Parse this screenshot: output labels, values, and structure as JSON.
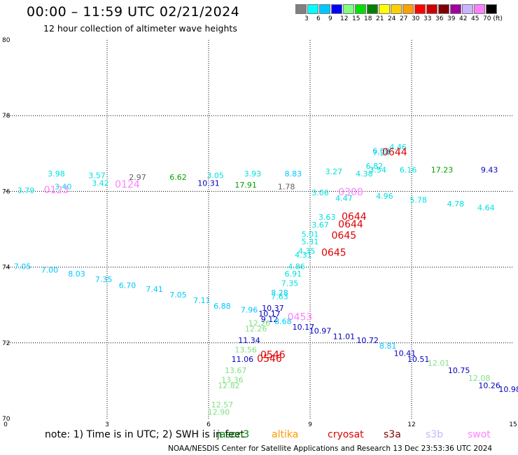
{
  "header": {
    "title": "00:00 – 11:59 UTC 02/21/2024",
    "subtitle": "12 hour collection of altimeter wave heights"
  },
  "colorbar": {
    "colors": [
      "#808080",
      "#00ffff",
      "#00c8ff",
      "#0000ff",
      "#80ff80",
      "#00e000",
      "#008000",
      "#ffff00",
      "#ffd000",
      "#ffa000",
      "#ff0000",
      "#d00000",
      "#800000",
      "#a000a0",
      "#c8b4ff",
      "#ff80ff",
      "#000000"
    ],
    "labels": [
      "3",
      "6",
      "9",
      "12",
      "15",
      "18",
      "21",
      "24",
      "27",
      "30",
      "33",
      "36",
      "39",
      "42",
      "45",
      "70 (ft)"
    ]
  },
  "axes": {
    "y_ticks": [
      {
        "label": "80",
        "value": 80
      },
      {
        "label": "78",
        "value": 78
      },
      {
        "label": "76",
        "value": 76
      },
      {
        "label": "74",
        "value": 74
      },
      {
        "label": "72",
        "value": 72
      },
      {
        "label": "70",
        "value": 70
      }
    ],
    "x_ticks": [
      {
        "label": "0",
        "value": 0
      },
      {
        "label": "3",
        "value": 3
      },
      {
        "label": "6",
        "value": 6
      },
      {
        "label": "9",
        "value": 9
      },
      {
        "label": "12",
        "value": 12
      },
      {
        "label": "15",
        "value": 15
      }
    ],
    "xlim": [
      0,
      15
    ],
    "ylim": [
      70,
      80
    ]
  },
  "observations": [
    {
      "text": "4.46",
      "lon": 11.6,
      "lat": 77.1,
      "color": "#00e0e0"
    },
    {
      "text": "6.09",
      "lon": 11.1,
      "lat": 77.0,
      "color": "#00c8ff"
    },
    {
      "text": "7.24",
      "lon": 11.1,
      "lat": 76.95,
      "color": "#00e0e0"
    },
    {
      "text": "0644",
      "lon": 11.5,
      "lat": 76.95,
      "color": "#e00000",
      "big": true
    },
    {
      "text": "6.82",
      "lon": 10.9,
      "lat": 76.6,
      "color": "#00e0e0"
    },
    {
      "text": "6.16",
      "lon": 11.9,
      "lat": 76.5,
      "color": "#00e0e0"
    },
    {
      "text": "17.23",
      "lon": 12.9,
      "lat": 76.5,
      "color": "#00a000"
    },
    {
      "text": "9.43",
      "lon": 14.3,
      "lat": 76.5,
      "color": "#0000c0"
    },
    {
      "text": "3.98",
      "lon": 1.5,
      "lat": 76.4,
      "color": "#00e0e0"
    },
    {
      "text": "3.57",
      "lon": 2.7,
      "lat": 76.35,
      "color": "#00e0e0"
    },
    {
      "text": "2.97",
      "lon": 3.9,
      "lat": 76.3,
      "color": "#606060"
    },
    {
      "text": "6.62",
      "lon": 5.1,
      "lat": 76.3,
      "color": "#00a000"
    },
    {
      "text": "3.05",
      "lon": 6.2,
      "lat": 76.35,
      "color": "#00e0e0"
    },
    {
      "text": "3.93",
      "lon": 7.3,
      "lat": 76.4,
      "color": "#00e0e0"
    },
    {
      "text": "8.83",
      "lon": 8.5,
      "lat": 76.4,
      "color": "#00c8ff"
    },
    {
      "text": "3.27",
      "lon": 9.7,
      "lat": 76.45,
      "color": "#00e0e0"
    },
    {
      "text": "4.38",
      "lon": 10.6,
      "lat": 76.4,
      "color": "#00e0e0"
    },
    {
      "text": "3.54",
      "lon": 11.0,
      "lat": 76.5,
      "color": "#00e0e0"
    },
    {
      "text": "3.40",
      "lon": 1.7,
      "lat": 76.05,
      "color": "#00e0e0"
    },
    {
      "text": "3.42",
      "lon": 2.8,
      "lat": 76.15,
      "color": "#00e0e0"
    },
    {
      "text": "0124",
      "lon": 3.6,
      "lat": 76.1,
      "color": "#ff80ff",
      "big": true
    },
    {
      "text": "10.31",
      "lon": 6.0,
      "lat": 76.15,
      "color": "#0000c0"
    },
    {
      "text": "17.91",
      "lon": 7.1,
      "lat": 76.1,
      "color": "#00a000"
    },
    {
      "text": "1.78",
      "lon": 8.3,
      "lat": 76.05,
      "color": "#606060"
    },
    {
      "text": "3.79",
      "lon": 0.6,
      "lat": 75.95,
      "color": "#00e0e0"
    },
    {
      "text": "0123",
      "lon": 1.5,
      "lat": 75.95,
      "color": "#ff80ff",
      "big": true
    },
    {
      "text": "3.06",
      "lon": 9.3,
      "lat": 75.9,
      "color": "#00e0e0"
    },
    {
      "text": "0308",
      "lon": 10.2,
      "lat": 75.9,
      "color": "#ff80ff",
      "big": true
    },
    {
      "text": "4.47",
      "lon": 10.0,
      "lat": 75.75,
      "color": "#00e0e0"
    },
    {
      "text": "4.96",
      "lon": 11.2,
      "lat": 75.8,
      "color": "#00e0e0"
    },
    {
      "text": "5.78",
      "lon": 12.2,
      "lat": 75.7,
      "color": "#00e0e0"
    },
    {
      "text": "4.78",
      "lon": 13.3,
      "lat": 75.6,
      "color": "#00e0e0"
    },
    {
      "text": "4.64",
      "lon": 14.2,
      "lat": 75.5,
      "color": "#00e0e0"
    },
    {
      "text": "3.63",
      "lon": 9.5,
      "lat": 75.25,
      "color": "#00e0e0"
    },
    {
      "text": "0644",
      "lon": 10.3,
      "lat": 75.25,
      "color": "#e00000",
      "big": true
    },
    {
      "text": "3.67",
      "lon": 9.3,
      "lat": 75.05,
      "color": "#00e0e0"
    },
    {
      "text": "0644",
      "lon": 10.2,
      "lat": 75.05,
      "color": "#e00000",
      "big": true
    },
    {
      "text": "5.01",
      "lon": 9.0,
      "lat": 74.8,
      "color": "#00e0e0"
    },
    {
      "text": "0645",
      "lon": 10.0,
      "lat": 74.75,
      "color": "#e00000",
      "big": true
    },
    {
      "text": "5.31",
      "lon": 9.0,
      "lat": 74.6,
      "color": "#00e0e0"
    },
    {
      "text": "4.35",
      "lon": 8.9,
      "lat": 74.35,
      "color": "#00e0e0"
    },
    {
      "text": "0645",
      "lon": 9.7,
      "lat": 74.3,
      "color": "#e00000",
      "big": true
    },
    {
      "text": "4.31",
      "lon": 8.8,
      "lat": 74.25,
      "color": "#00e0e0"
    },
    {
      "text": "7.05",
      "lon": 0.5,
      "lat": 73.95,
      "color": "#00c8ff"
    },
    {
      "text": "7.00",
      "lon": 1.3,
      "lat": 73.85,
      "color": "#00c8ff"
    },
    {
      "text": "4.86",
      "lon": 8.6,
      "lat": 73.95,
      "color": "#00e0e0"
    },
    {
      "text": "8.03",
      "lon": 2.1,
      "lat": 73.75,
      "color": "#00c8ff"
    },
    {
      "text": "6.91",
      "lon": 8.5,
      "lat": 73.75,
      "color": "#00e0e0"
    },
    {
      "text": "7.35",
      "lon": 2.9,
      "lat": 73.6,
      "color": "#00c8ff"
    },
    {
      "text": "6.70",
      "lon": 3.6,
      "lat": 73.45,
      "color": "#00c8ff"
    },
    {
      "text": "7.35",
      "lon": 8.4,
      "lat": 73.5,
      "color": "#00e0e0"
    },
    {
      "text": "7.41",
      "lon": 4.4,
      "lat": 73.35,
      "color": "#00c8ff"
    },
    {
      "text": "7.05",
      "lon": 5.1,
      "lat": 73.2,
      "color": "#00c8ff"
    },
    {
      "text": "7.11",
      "lon": 5.8,
      "lat": 73.05,
      "color": "#00c8ff"
    },
    {
      "text": "8.28",
      "lon": 8.1,
      "lat": 73.25,
      "color": "#00c8ff"
    },
    {
      "text": "7.63",
      "lon": 8.1,
      "lat": 73.15,
      "color": "#00e0e0"
    },
    {
      "text": "6.88",
      "lon": 6.4,
      "lat": 72.9,
      "color": "#00c8ff"
    },
    {
      "text": "10.37",
      "lon": 7.9,
      "lat": 72.85,
      "color": "#0000c0"
    },
    {
      "text": "7.96",
      "lon": 7.2,
      "lat": 72.8,
      "color": "#00c8ff"
    },
    {
      "text": "10.17",
      "lon": 7.8,
      "lat": 72.7,
      "color": "#0000c0"
    },
    {
      "text": "9.12",
      "lon": 7.8,
      "lat": 72.55,
      "color": "#0000c0"
    },
    {
      "text": "0453",
      "lon": 8.7,
      "lat": 72.6,
      "color": "#ff80ff",
      "big": true
    },
    {
      "text": "8.68",
      "lon": 8.2,
      "lat": 72.5,
      "color": "#00c8ff"
    },
    {
      "text": "12.26",
      "lon": 7.5,
      "lat": 72.45,
      "color": "#80e080"
    },
    {
      "text": "10.17",
      "lon": 8.8,
      "lat": 72.35,
      "color": "#0000c0"
    },
    {
      "text": "12.26",
      "lon": 7.4,
      "lat": 72.3,
      "color": "#80e080"
    },
    {
      "text": "10.97",
      "lon": 9.3,
      "lat": 72.25,
      "color": "#0000c0"
    },
    {
      "text": "11.01",
      "lon": 10.0,
      "lat": 72.1,
      "color": "#0000c0"
    },
    {
      "text": "10.72",
      "lon": 10.7,
      "lat": 72.0,
      "color": "#0000c0"
    },
    {
      "text": "11.34",
      "lon": 7.2,
      "lat": 72.0,
      "color": "#0000c0"
    },
    {
      "text": "8.81",
      "lon": 11.3,
      "lat": 71.85,
      "color": "#00c8ff"
    },
    {
      "text": "13.56",
      "lon": 7.1,
      "lat": 71.75,
      "color": "#80e080"
    },
    {
      "text": "10.41",
      "lon": 11.8,
      "lat": 71.65,
      "color": "#0000c0"
    },
    {
      "text": "0546",
      "lon": 7.9,
      "lat": 71.6,
      "color": "#e00000",
      "big": true
    },
    {
      "text": "11.06",
      "lon": 7.0,
      "lat": 71.5,
      "color": "#0000c0"
    },
    {
      "text": "0546",
      "lon": 7.8,
      "lat": 71.5,
      "color": "#e00000",
      "big": true
    },
    {
      "text": "10.51",
      "lon": 12.2,
      "lat": 71.5,
      "color": "#0000c0"
    },
    {
      "text": "12.01",
      "lon": 12.8,
      "lat": 71.4,
      "color": "#80e080"
    },
    {
      "text": "13.67",
      "lon": 6.8,
      "lat": 71.2,
      "color": "#80e080"
    },
    {
      "text": "10.75",
      "lon": 13.4,
      "lat": 71.2,
      "color": "#0000c0"
    },
    {
      "text": "12.08",
      "lon": 14.0,
      "lat": 71.0,
      "color": "#80e080"
    },
    {
      "text": "13.36",
      "lon": 6.7,
      "lat": 70.95,
      "color": "#80e080"
    },
    {
      "text": "10.26",
      "lon": 14.3,
      "lat": 70.8,
      "color": "#0000c0"
    },
    {
      "text": "12.82",
      "lon": 6.6,
      "lat": 70.8,
      "color": "#80e080"
    },
    {
      "text": "10.98",
      "lon": 14.9,
      "lat": 70.7,
      "color": "#0000c0"
    },
    {
      "text": "12.57",
      "lon": 6.4,
      "lat": 70.3,
      "color": "#80e080"
    },
    {
      "text": "12.90",
      "lon": 6.3,
      "lat": 70.1,
      "color": "#80e080"
    }
  ],
  "footer": {
    "note": "note: 1) Time is in UTC; 2) SWH is in feet",
    "satellites": [
      {
        "name": "jason3",
        "color": "#008000"
      },
      {
        "name": "altika",
        "color": "#ff9900"
      },
      {
        "name": "cryosat",
        "color": "#e00000"
      },
      {
        "name": "s3a",
        "color": "#800000"
      },
      {
        "name": "s3b",
        "color": "#c8b4ff"
      },
      {
        "name": "swot",
        "color": "#ff80ff"
      }
    ],
    "credit": "NOAA/NESDIS Center for Satellite Applications and Research   13 Dec 23:53:36 UTC 2024"
  }
}
